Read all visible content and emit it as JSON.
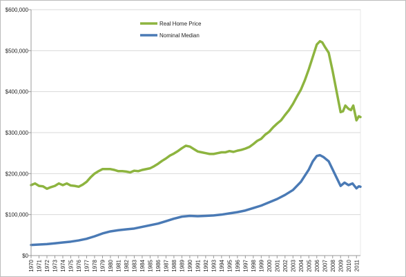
{
  "chart_data": {
    "type": "line",
    "title": "",
    "xlabel": "",
    "ylabel": "",
    "x": [
      1970,
      1971,
      1972,
      1973,
      1974,
      1975,
      1976,
      1977,
      1978,
      1979,
      1980,
      1981,
      1982,
      1983,
      1984,
      1985,
      1986,
      1987,
      1988,
      1989,
      1990,
      1991,
      1992,
      1993,
      1994,
      1995,
      1996,
      1997,
      1998,
      1999,
      2000,
      2001,
      2002,
      2003,
      2004,
      2005,
      2006,
      2007,
      2008,
      2009,
      2010,
      2011
    ],
    "x_tick_labels": [
      "1970",
      "1971",
      "1972",
      "1973",
      "1974",
      "1975",
      "1976",
      "1977",
      "1978",
      "1979",
      "1980",
      "1981",
      "1982",
      "1983",
      "1984",
      "1985",
      "1986",
      "1987",
      "1988",
      "1989",
      "1990",
      "1991",
      "1992",
      "1993",
      "1994",
      "1995",
      "1996",
      "1997",
      "1998",
      "1999",
      "2000",
      "2001",
      "2002",
      "2003",
      "2004",
      "2005",
      "2006",
      "2007",
      "2008",
      "2009",
      "2010",
      "2011"
    ],
    "y_ticks": [
      0,
      100000,
      200000,
      300000,
      400000,
      500000,
      600000
    ],
    "y_tick_labels": [
      "$0",
      "$100,000",
      "$200,000",
      "$300,000",
      "$400,000",
      "$500,000",
      "$600,000"
    ],
    "ylim": [
      0,
      600000
    ],
    "xlim": [
      1970,
      2011.5
    ],
    "grid": "horizontal",
    "legend_position": "top-left",
    "series": [
      {
        "name": "Real Home Price",
        "color": "#8db43f",
        "points": [
          [
            1970,
            172000
          ],
          [
            1970.5,
            176000
          ],
          [
            1971,
            170000
          ],
          [
            1971.5,
            169000
          ],
          [
            1972,
            163000
          ],
          [
            1972.5,
            167000
          ],
          [
            1973,
            170000
          ],
          [
            1973.5,
            176000
          ],
          [
            1974,
            172000
          ],
          [
            1974.5,
            176000
          ],
          [
            1975,
            171000
          ],
          [
            1975.5,
            170000
          ],
          [
            1976,
            168000
          ],
          [
            1976.5,
            173000
          ],
          [
            1977,
            180000
          ],
          [
            1977.5,
            191000
          ],
          [
            1978,
            200000
          ],
          [
            1978.5,
            206000
          ],
          [
            1979,
            211000
          ],
          [
            1980,
            211000
          ],
          [
            1980.5,
            209000
          ],
          [
            1981,
            206000
          ],
          [
            1981.5,
            206000
          ],
          [
            1982,
            205000
          ],
          [
            1982.5,
            203000
          ],
          [
            1983,
            207000
          ],
          [
            1983.5,
            206000
          ],
          [
            1984,
            209000
          ],
          [
            1985,
            213000
          ],
          [
            1985.5,
            218000
          ],
          [
            1986,
            224000
          ],
          [
            1986.5,
            231000
          ],
          [
            1987,
            237000
          ],
          [
            1987.5,
            244000
          ],
          [
            1988,
            249000
          ],
          [
            1988.5,
            255000
          ],
          [
            1989,
            262000
          ],
          [
            1989.5,
            268000
          ],
          [
            1990,
            266000
          ],
          [
            1990.5,
            260000
          ],
          [
            1991,
            254000
          ],
          [
            1991.5,
            252000
          ],
          [
            1992,
            250000
          ],
          [
            1992.5,
            248000
          ],
          [
            1993,
            248000
          ],
          [
            1993.5,
            250000
          ],
          [
            1994,
            252000
          ],
          [
            1994.5,
            252000
          ],
          [
            1995,
            255000
          ],
          [
            1995.5,
            253000
          ],
          [
            1996,
            256000
          ],
          [
            1996.5,
            258000
          ],
          [
            1997,
            261000
          ],
          [
            1997.5,
            265000
          ],
          [
            1998,
            272000
          ],
          [
            1998.5,
            280000
          ],
          [
            1999,
            285000
          ],
          [
            1999.5,
            295000
          ],
          [
            2000,
            302000
          ],
          [
            2000.5,
            313000
          ],
          [
            2001,
            322000
          ],
          [
            2001.5,
            330000
          ],
          [
            2002,
            343000
          ],
          [
            2002.5,
            355000
          ],
          [
            2003,
            370000
          ],
          [
            2003.5,
            388000
          ],
          [
            2004,
            405000
          ],
          [
            2004.5,
            428000
          ],
          [
            2005,
            455000
          ],
          [
            2005.5,
            485000
          ],
          [
            2006,
            515000
          ],
          [
            2006.4,
            523000
          ],
          [
            2006.7,
            520000
          ],
          [
            2007,
            510000
          ],
          [
            2007.5,
            495000
          ],
          [
            2008,
            450000
          ],
          [
            2008.5,
            400000
          ],
          [
            2009,
            350000
          ],
          [
            2009.3,
            352000
          ],
          [
            2009.6,
            366000
          ],
          [
            2010,
            358000
          ],
          [
            2010.3,
            355000
          ],
          [
            2010.6,
            366000
          ],
          [
            2011,
            330000
          ],
          [
            2011.3,
            340000
          ],
          [
            2011.5,
            338000
          ]
        ]
      },
      {
        "name": "Nominal Median",
        "color": "#4a7ab5",
        "points": [
          [
            1970,
            26000
          ],
          [
            1971,
            27000
          ],
          [
            1972,
            28000
          ],
          [
            1973,
            30000
          ],
          [
            1974,
            32000
          ],
          [
            1975,
            34000
          ],
          [
            1976,
            37000
          ],
          [
            1977,
            41000
          ],
          [
            1978,
            47000
          ],
          [
            1979,
            54000
          ],
          [
            1980,
            59000
          ],
          [
            1981,
            62000
          ],
          [
            1982,
            64000
          ],
          [
            1983,
            66000
          ],
          [
            1984,
            70000
          ],
          [
            1985,
            74000
          ],
          [
            1986,
            78000
          ],
          [
            1987,
            84000
          ],
          [
            1988,
            90000
          ],
          [
            1989,
            95000
          ],
          [
            1990,
            97000
          ],
          [
            1991,
            96000
          ],
          [
            1992,
            97000
          ],
          [
            1993,
            98000
          ],
          [
            1994,
            100000
          ],
          [
            1995,
            103000
          ],
          [
            1996,
            106000
          ],
          [
            1997,
            110000
          ],
          [
            1998,
            116000
          ],
          [
            1999,
            122000
          ],
          [
            2000,
            130000
          ],
          [
            2001,
            138000
          ],
          [
            2002,
            148000
          ],
          [
            2003,
            160000
          ],
          [
            2004,
            180000
          ],
          [
            2005,
            210000
          ],
          [
            2005.5,
            230000
          ],
          [
            2006,
            243000
          ],
          [
            2006.4,
            245000
          ],
          [
            2006.8,
            241000
          ],
          [
            2007,
            238000
          ],
          [
            2007.5,
            230000
          ],
          [
            2008,
            210000
          ],
          [
            2008.5,
            190000
          ],
          [
            2009,
            170000
          ],
          [
            2009.5,
            178000
          ],
          [
            2010,
            172000
          ],
          [
            2010.5,
            176000
          ],
          [
            2011,
            164000
          ],
          [
            2011.3,
            169000
          ],
          [
            2011.5,
            168000
          ]
        ]
      }
    ]
  }
}
